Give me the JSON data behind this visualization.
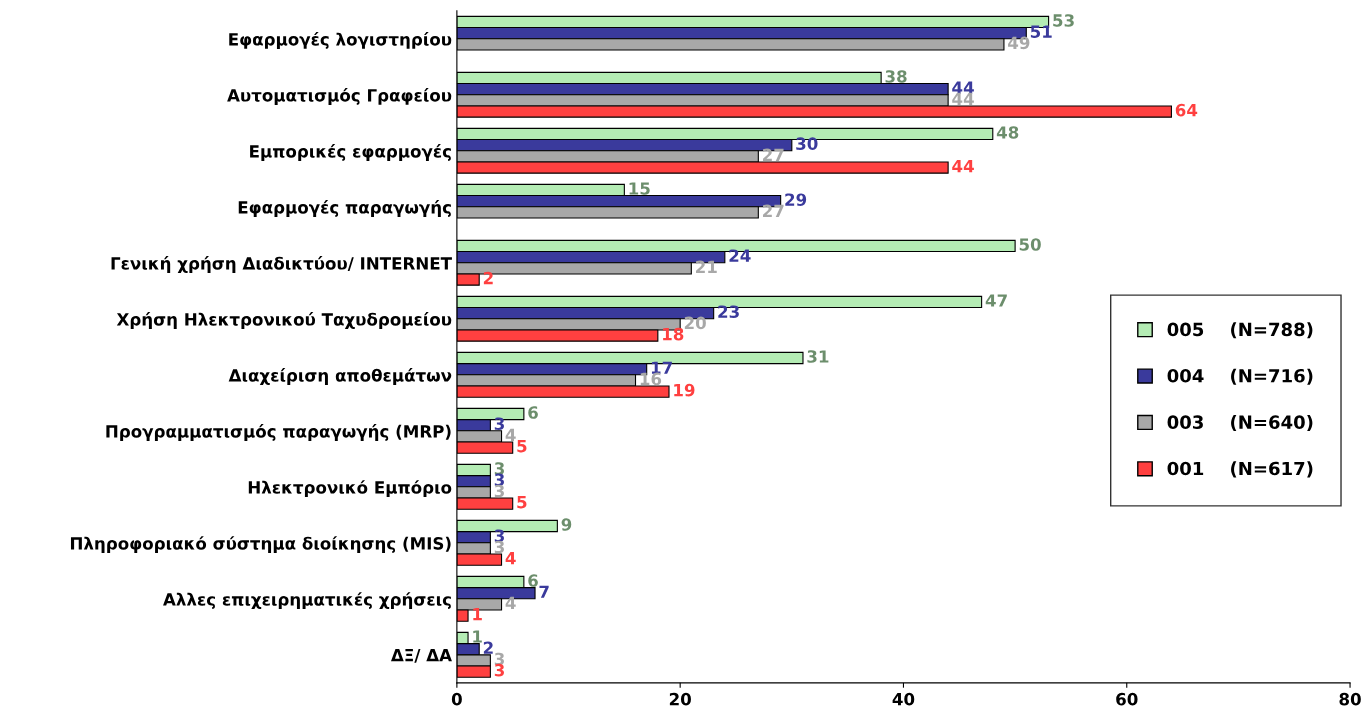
{
  "chart_data": {
    "type": "bar",
    "orientation": "horizontal",
    "categories": [
      "Εφαρμογές λογιστηρίου",
      "Αυτοματισμός Γραφείου",
      "Εμπορικές εφαρμογές",
      "Εφαρμογές παραγωγής",
      "Γενική χρήση Διαδικτύου/ INTERNET",
      "Χρήση Ηλεκτρονικού Ταχυδρομείου",
      "Διαχείριση αποθεμάτων",
      "Προγραμματισμός παραγωγής (MRP)",
      "Ηλεκτρονικό Εμπόριο",
      "Πληροφοριακό σύστημα διοίκησης (MIS)",
      "Αλλες επιχειρηματικές χρήσεις",
      "ΔΞ/ ΔΑ"
    ],
    "series": [
      {
        "name": "005    (N=788)",
        "color": "#b4ecb4",
        "values": [
          53,
          38,
          48,
          15,
          50,
          47,
          31,
          6,
          3,
          9,
          6,
          1
        ]
      },
      {
        "name": "004    (N=716)",
        "color": "#3a3a9c",
        "values": [
          51,
          44,
          30,
          29,
          24,
          23,
          17,
          3,
          3,
          3,
          7,
          2
        ]
      },
      {
        "name": "003    (N=640)",
        "color": "#a8a8a8",
        "values": [
          49,
          44,
          27,
          27,
          21,
          20,
          16,
          4,
          3,
          3,
          4,
          3
        ]
      },
      {
        "name": "001    (N=617)",
        "color": "#ff4040",
        "values": [
          null,
          64,
          44,
          null,
          2,
          18,
          19,
          5,
          5,
          4,
          1,
          3
        ]
      }
    ],
    "xlim": [
      0,
      80
    ],
    "xticks": [
      0,
      20,
      40,
      60,
      80
    ],
    "grid": false,
    "legend": "right",
    "data_labels": true
  }
}
